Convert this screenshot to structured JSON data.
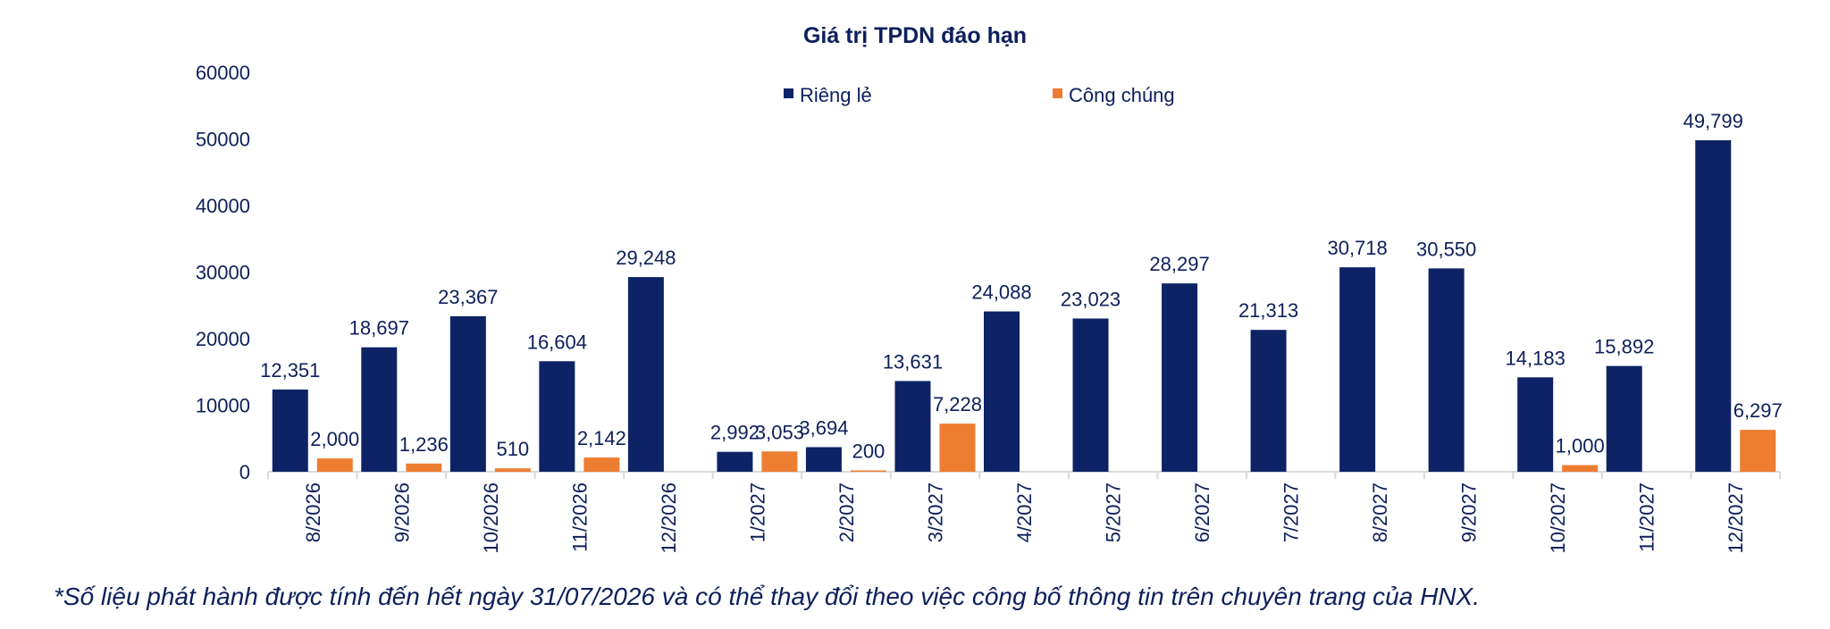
{
  "chart_data": {
    "type": "bar",
    "title": "Giá trị TPDN đáo hạn",
    "xlabel": "",
    "ylabel": "",
    "ylim": [
      0,
      60000
    ],
    "yticks": [
      "0",
      "10000",
      "20000",
      "30000",
      "40000",
      "50000",
      "60000"
    ],
    "grid": false,
    "legend_position": "top-center",
    "categories": [
      "8/2026",
      "9/2026",
      "10/2026",
      "11/2026",
      "12/2026",
      "1/2027",
      "2/2027",
      "3/2027",
      "4/2027",
      "5/2027",
      "6/2027",
      "7/2027",
      "8/2027",
      "9/2027",
      "10/2027",
      "11/2027",
      "12/2027"
    ],
    "series": [
      {
        "name": "Riêng lẻ",
        "color": "#0d2366",
        "values": [
          12351,
          18697,
          23367,
          16604,
          29248,
          2992,
          3694,
          13631,
          24088,
          23023,
          28297,
          21313,
          30718,
          30550,
          14183,
          15892,
          49799
        ],
        "labels": [
          "12,351",
          "18,697",
          "23,367",
          "16,604",
          "29,248",
          "2,992",
          "3,694",
          "13,631",
          "24,088",
          "23,023",
          "28,297",
          "21,313",
          "30,718",
          "30,550",
          "14,183",
          "15,892",
          "49,799"
        ]
      },
      {
        "name": "Công chúng",
        "color": "#ed7d31",
        "values": [
          2000,
          1236,
          510,
          2142,
          null,
          3053,
          200,
          7228,
          null,
          null,
          null,
          null,
          null,
          null,
          1000,
          null,
          6297
        ],
        "labels": [
          "2,000",
          "1,236",
          "510",
          "2,142",
          "",
          "3,053",
          "200",
          "7,228",
          "",
          "",
          "",
          "",
          "",
          "",
          "1,000",
          "",
          "6,297"
        ]
      }
    ]
  },
  "footnote": "*Số liệu phát hành được tính đến hết ngày 31/07/2026 và có thể thay đổi theo việc công bố thông tin trên chuyên trang của HNX."
}
